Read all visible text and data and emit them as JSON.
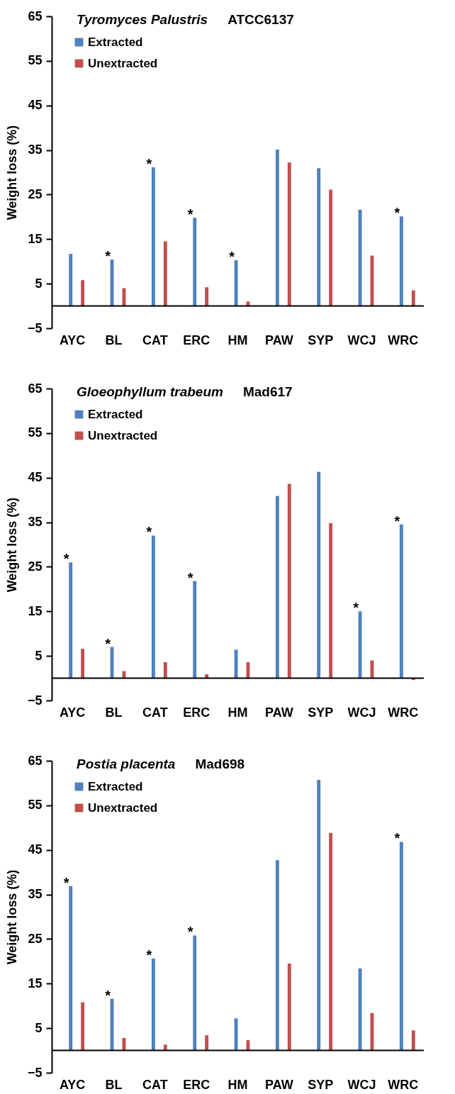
{
  "chart_data": [
    {
      "type": "bar",
      "title": "Tyromyces Palustris",
      "subtitle": "ATCC6137",
      "ylabel": "Weight loss (%)",
      "categories": [
        "AYC",
        "BL",
        "CAT",
        "ERC",
        "HM",
        "PAW",
        "SYP",
        "WCJ",
        "WRC"
      ],
      "series": [
        {
          "name": "Extracted",
          "color": "#4f81bd",
          "values": [
            11.7,
            10.4,
            31.1,
            19.8,
            10.3,
            35.1,
            30.9,
            21.6,
            20.1
          ]
        },
        {
          "name": "Unextracted",
          "color": "#c0504d",
          "values": [
            5.8,
            4.0,
            14.5,
            4.2,
            1.0,
            32.2,
            26.1,
            11.3,
            3.5
          ]
        }
      ],
      "ylim": [
        -5,
        65
      ],
      "yticks": [
        -5,
        5,
        15,
        25,
        35,
        45,
        55,
        65
      ],
      "grid": false,
      "legend": "top left",
      "annotations": [
        {
          "text": "*",
          "x": "BL",
          "y": 10.4
        },
        {
          "text": "*",
          "x": "CAT",
          "y": 31.1
        },
        {
          "text": "*",
          "x": "ERC",
          "y": 19.8
        },
        {
          "text": "*",
          "x": "HM",
          "y": 10.3
        },
        {
          "text": "*",
          "x": "WRC",
          "y": 20.1
        }
      ]
    },
    {
      "type": "bar",
      "title": "Gloeophyllum trabeum",
      "subtitle": "Mad617",
      "ylabel": "Weight loss (%)",
      "categories": [
        "AYC",
        "BL",
        "CAT",
        "ERC",
        "HM",
        "PAW",
        "SYP",
        "WCJ",
        "WRC"
      ],
      "series": [
        {
          "name": "Extracted",
          "color": "#4f81bd",
          "values": [
            26.0,
            7.0,
            32.0,
            21.8,
            6.4,
            40.9,
            46.3,
            15.0,
            34.5
          ]
        },
        {
          "name": "Unextracted",
          "color": "#c0504d",
          "values": [
            6.6,
            1.6,
            3.6,
            0.9,
            3.6,
            43.6,
            34.8,
            4.0,
            -0.4
          ]
        }
      ],
      "ylim": [
        -5,
        65
      ],
      "yticks": [
        -5,
        5,
        15,
        25,
        35,
        45,
        55,
        65
      ],
      "grid": false,
      "legend": "top left",
      "annotations": [
        {
          "text": "*",
          "x": "AYC",
          "y": 26.0
        },
        {
          "text": "*",
          "x": "BL",
          "y": 7.0
        },
        {
          "text": "*",
          "x": "CAT",
          "y": 32.0
        },
        {
          "text": "*",
          "x": "ERC",
          "y": 21.8
        },
        {
          "text": "*",
          "x": "WCJ",
          "y": 15.0
        },
        {
          "text": "*",
          "x": "WRC",
          "y": 34.5
        }
      ]
    },
    {
      "type": "bar",
      "title": "Postia placenta",
      "subtitle": "Mad698",
      "ylabel": "Weight loss (%)",
      "categories": [
        "AYC",
        "BL",
        "CAT",
        "ERC",
        "HM",
        "PAW",
        "SYP",
        "WCJ",
        "WRC"
      ],
      "series": [
        {
          "name": "Extracted",
          "color": "#4f81bd",
          "values": [
            36.9,
            11.6,
            20.6,
            25.8,
            7.2,
            42.7,
            60.7,
            18.4,
            46.8
          ]
        },
        {
          "name": "Unextracted",
          "color": "#c0504d",
          "values": [
            10.8,
            2.8,
            1.3,
            3.4,
            2.3,
            19.5,
            48.8,
            8.4,
            4.5
          ]
        }
      ],
      "ylim": [
        -5,
        65
      ],
      "yticks": [
        -5,
        5,
        15,
        25,
        35,
        45,
        55,
        65
      ],
      "grid": false,
      "legend": "top left",
      "annotations": [
        {
          "text": "*",
          "x": "AYC",
          "y": 36.9
        },
        {
          "text": "*",
          "x": "BL",
          "y": 11.6
        },
        {
          "text": "*",
          "x": "CAT",
          "y": 20.6
        },
        {
          "text": "*",
          "x": "ERC",
          "y": 25.8
        },
        {
          "text": "*",
          "x": "WRC",
          "y": 46.8
        }
      ]
    }
  ]
}
